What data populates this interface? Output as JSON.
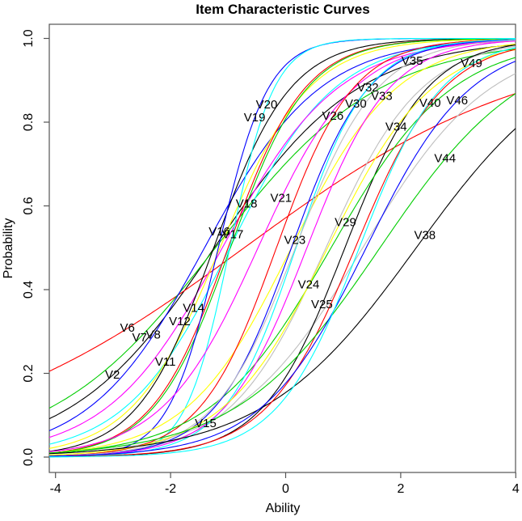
{
  "title": "Item Characteristic Curves",
  "x_axis": {
    "label": "Ability",
    "tick_labels": [
      "-4",
      "-2",
      "0",
      "2",
      "4"
    ],
    "tick_values": [
      -4,
      -2,
      0,
      2,
      4
    ],
    "range": [
      -4.1,
      4.0
    ]
  },
  "y_axis": {
    "label": "Probability",
    "tick_labels": [
      "0.0",
      "0.2",
      "0.4",
      "0.6",
      "0.8",
      "1.0"
    ],
    "tick_values": [
      0.0,
      0.2,
      0.4,
      0.6,
      0.8,
      1.0
    ],
    "range": [
      -0.04,
      1.04
    ]
  },
  "palette": {
    "black": "#000000",
    "red": "#FF0000",
    "green": "#00CD00",
    "blue": "#0000FF",
    "cyan": "#00FFFF",
    "magenta": "#FF00FF",
    "yellow": "#FFFF00",
    "gray": "#BEBEBE"
  },
  "chart_data": {
    "type": "line",
    "model": "2PL logistic item characteristic curve: P(theta) = 1 / (1 + exp(-a * (theta - b)))",
    "grid": false,
    "legend": "labels-on-curves",
    "series": [
      {
        "name": "V2",
        "color": "#000000",
        "a": 0.8,
        "b": -1.24,
        "label_theta": -3.01,
        "label_p": 0.195
      },
      {
        "name": "V6",
        "color": "#FF0000",
        "a": 0.4,
        "b": -0.72,
        "label_theta": -2.75,
        "label_p": 0.307
      },
      {
        "name": "V7",
        "color": "#00CD00",
        "a": 0.7,
        "b": -1.22,
        "label_theta": -2.54,
        "label_p": 0.284
      },
      {
        "name": "V8",
        "color": "#0000FF",
        "a": 1.0,
        "b": -1.41,
        "label_theta": -2.3,
        "label_p": 0.291
      },
      {
        "name": "V11",
        "color": "#00FFFF",
        "a": 1.1,
        "b": -0.97,
        "label_theta": -2.09,
        "label_p": 0.226
      },
      {
        "name": "V12",
        "color": "#FF00FF",
        "a": 1.0,
        "b": -1.1,
        "label_theta": -1.84,
        "label_p": 0.322
      },
      {
        "name": "V14",
        "color": "#FFFF00",
        "a": 1.3,
        "b": -1.14,
        "label_theta": -1.6,
        "label_p": 0.355
      },
      {
        "name": "V15",
        "color": "#BEBEBE",
        "a": 0.9,
        "b": 1.34,
        "label_theta": -1.39,
        "label_p": 0.079
      },
      {
        "name": "V16",
        "color": "#000000",
        "a": 1.5,
        "b": -1.25,
        "label_theta": -1.15,
        "label_p": 0.536
      },
      {
        "name": "V17",
        "color": "#FF0000",
        "a": 1.5,
        "b": -1.0,
        "label_theta": -0.92,
        "label_p": 0.53
      },
      {
        "name": "V18",
        "color": "#00CD00",
        "a": 1.5,
        "b": -0.96,
        "label_theta": -0.68,
        "label_p": 0.602
      },
      {
        "name": "V19",
        "color": "#0000FF",
        "a": 2.3,
        "b": -1.17,
        "label_theta": -0.54,
        "label_p": 0.81
      },
      {
        "name": "V20",
        "color": "#00FFFF",
        "a": 2.6,
        "b": -0.97,
        "label_theta": -0.33,
        "label_p": 0.839
      },
      {
        "name": "V21",
        "color": "#FF00FF",
        "a": 1.2,
        "b": -0.48,
        "label_theta": -0.08,
        "label_p": 0.619
      },
      {
        "name": "V23",
        "color": "#FFFF00",
        "a": 1.1,
        "b": 0.1,
        "label_theta": 0.16,
        "label_p": 0.517
      },
      {
        "name": "V24",
        "color": "#BEBEBE",
        "a": 1.2,
        "b": 0.7,
        "label_theta": 0.4,
        "label_p": 0.411
      },
      {
        "name": "V25",
        "color": "#000000",
        "a": 1.4,
        "b": 1.03,
        "label_theta": 0.63,
        "label_p": 0.363
      },
      {
        "name": "V26",
        "color": "#FF0000",
        "a": 1.5,
        "b": -0.16,
        "label_theta": 0.82,
        "label_p": 0.814
      },
      {
        "name": "V29",
        "color": "#00CD00",
        "a": 0.95,
        "b": 0.79,
        "label_theta": 1.04,
        "label_p": 0.559
      },
      {
        "name": "V30",
        "color": "#0000FF",
        "a": 1.5,
        "b": 0.1,
        "label_theta": 1.22,
        "label_p": 0.843
      },
      {
        "name": "V32",
        "color": "#00FFFF",
        "a": 1.6,
        "b": 0.18,
        "label_theta": 1.43,
        "label_p": 0.881
      },
      {
        "name": "V33",
        "color": "#FF00FF",
        "a": 1.4,
        "b": 0.37,
        "label_theta": 1.67,
        "label_p": 0.86
      },
      {
        "name": "V34",
        "color": "#FFFF00",
        "a": 1.1,
        "b": 0.73,
        "label_theta": 1.92,
        "label_p": 0.787
      },
      {
        "name": "V35",
        "color": "#BEBEBE",
        "a": 1.4,
        "b": 0.17,
        "label_theta": 2.2,
        "label_p": 0.945
      },
      {
        "name": "V38",
        "color": "#000000",
        "a": 0.75,
        "b": 2.27,
        "label_theta": 2.42,
        "label_p": 0.528
      },
      {
        "name": "V40",
        "color": "#FF0000",
        "a": 1.3,
        "b": 1.21,
        "label_theta": 2.51,
        "label_p": 0.845
      },
      {
        "name": "V44",
        "color": "#00CD00",
        "a": 0.8,
        "b": 1.64,
        "label_theta": 2.77,
        "label_p": 0.712
      },
      {
        "name": "V46",
        "color": "#0000FF",
        "a": 1.1,
        "b": 1.4,
        "label_theta": 2.98,
        "label_p": 0.851
      },
      {
        "name": "V49",
        "color": "#00FFFF",
        "a": 1.4,
        "b": 1.28,
        "label_theta": 3.23,
        "label_p": 0.939
      }
    ]
  }
}
